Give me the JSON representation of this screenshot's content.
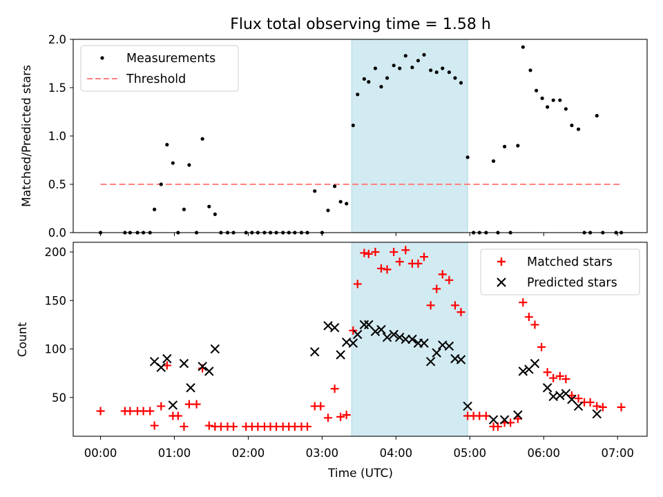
{
  "chart_data": [
    {
      "type": "scatter",
      "title": "Flux total observing time = 1.58 h",
      "ylabel": "Matched/Predicted stars",
      "ylim": [
        0,
        2.0
      ],
      "xlim": [
        -0.37,
        7.4
      ],
      "yticks": [
        "0.0",
        "0.5",
        "1.0",
        "1.5",
        "2.0"
      ],
      "shaded_span": [
        3.4,
        4.97
      ],
      "shade_color": "#add8e6",
      "legend": {
        "placement": "upper-left",
        "entries": [
          "Measurements",
          "Threshold"
        ]
      },
      "series": [
        {
          "name": "Measurements",
          "marker": "dot",
          "color": "#000000",
          "points": [
            [
              0.0,
              0
            ],
            [
              0.33,
              0
            ],
            [
              0.4,
              0
            ],
            [
              0.5,
              0
            ],
            [
              0.58,
              0
            ],
            [
              0.67,
              0
            ],
            [
              0.73,
              0.24
            ],
            [
              0.82,
              0.5
            ],
            [
              0.9,
              0.91
            ],
            [
              0.98,
              0.72
            ],
            [
              1.05,
              0
            ],
            [
              1.13,
              0.24
            ],
            [
              1.2,
              0.7
            ],
            [
              1.3,
              0
            ],
            [
              1.38,
              0.97
            ],
            [
              1.47,
              0.27
            ],
            [
              1.55,
              0.19
            ],
            [
              1.63,
              0
            ],
            [
              1.72,
              0
            ],
            [
              1.8,
              0
            ],
            [
              1.97,
              0
            ],
            [
              2.05,
              0
            ],
            [
              2.13,
              0
            ],
            [
              2.22,
              0
            ],
            [
              2.3,
              0
            ],
            [
              2.38,
              0
            ],
            [
              2.47,
              0
            ],
            [
              2.55,
              0
            ],
            [
              2.63,
              0
            ],
            [
              2.72,
              0
            ],
            [
              2.8,
              0
            ],
            [
              2.9,
              0.43
            ],
            [
              3.0,
              0
            ],
            [
              3.08,
              0.23
            ],
            [
              3.17,
              0.48
            ],
            [
              3.25,
              0.32
            ],
            [
              3.33,
              0.3
            ],
            [
              3.42,
              1.11
            ],
            [
              3.48,
              1.43
            ],
            [
              3.57,
              1.59
            ],
            [
              3.63,
              1.56
            ],
            [
              3.72,
              1.7
            ],
            [
              3.8,
              1.51
            ],
            [
              3.88,
              1.6
            ],
            [
              3.97,
              1.73
            ],
            [
              4.05,
              1.7
            ],
            [
              4.13,
              1.83
            ],
            [
              4.22,
              1.71
            ],
            [
              4.3,
              1.78
            ],
            [
              4.38,
              1.84
            ],
            [
              4.47,
              1.68
            ],
            [
              4.55,
              1.66
            ],
            [
              4.63,
              1.7
            ],
            [
              4.72,
              1.66
            ],
            [
              4.8,
              1.6
            ],
            [
              4.88,
              1.55
            ],
            [
              4.97,
              0.78
            ],
            [
              5.05,
              0
            ],
            [
              5.13,
              0
            ],
            [
              5.22,
              0
            ],
            [
              5.32,
              0.74
            ],
            [
              5.38,
              0
            ],
            [
              5.47,
              0.89
            ],
            [
              5.55,
              0
            ],
            [
              5.65,
              0.9
            ],
            [
              5.72,
              1.92
            ],
            [
              5.82,
              1.68
            ],
            [
              5.9,
              1.47
            ],
            [
              5.98,
              1.39
            ],
            [
              6.05,
              1.3
            ],
            [
              6.13,
              1.37
            ],
            [
              6.22,
              1.37
            ],
            [
              6.3,
              1.28
            ],
            [
              6.38,
              1.11
            ],
            [
              6.47,
              1.07
            ],
            [
              6.55,
              0
            ],
            [
              6.63,
              0
            ],
            [
              6.72,
              1.21
            ],
            [
              6.8,
              0
            ],
            [
              6.98,
              0
            ],
            [
              7.05,
              0
            ]
          ]
        },
        {
          "name": "Threshold",
          "marker": "dashed-line",
          "color": "#ff7f7f",
          "points": [
            [
              0.0,
              0.5
            ],
            [
              7.07,
              0.5
            ]
          ]
        }
      ]
    },
    {
      "type": "scatter",
      "xlabel": "Time (UTC)",
      "ylabel": "Count",
      "ylim": [
        10,
        210
      ],
      "xlim": [
        -0.37,
        7.4
      ],
      "yticks": [
        "50",
        "100",
        "150",
        "200"
      ],
      "xtick_values": [
        0,
        1,
        2,
        3,
        4,
        5,
        6,
        7
      ],
      "xticks": [
        "00:00",
        "01:00",
        "02:00",
        "03:00",
        "04:00",
        "05:00",
        "06:00",
        "07:00"
      ],
      "shaded_span": [
        3.4,
        4.97
      ],
      "shade_color": "#add8e6",
      "legend": {
        "placement": "upper-right",
        "entries": [
          "Matched stars",
          "Predicted stars"
        ]
      },
      "series": [
        {
          "name": "Matched stars",
          "marker": "plus",
          "color": "#ff0000",
          "points": [
            [
              0.0,
              36
            ],
            [
              0.33,
              36
            ],
            [
              0.4,
              36
            ],
            [
              0.5,
              36
            ],
            [
              0.58,
              36
            ],
            [
              0.67,
              36
            ],
            [
              0.73,
              21
            ],
            [
              0.82,
              41
            ],
            [
              0.9,
              83
            ],
            [
              0.98,
              31
            ],
            [
              1.05,
              31
            ],
            [
              1.13,
              20
            ],
            [
              1.2,
              43
            ],
            [
              1.3,
              43
            ],
            [
              1.38,
              80
            ],
            [
              1.47,
              21
            ],
            [
              1.55,
              20
            ],
            [
              1.63,
              20
            ],
            [
              1.72,
              20
            ],
            [
              1.8,
              20
            ],
            [
              1.97,
              20
            ],
            [
              2.05,
              20
            ],
            [
              2.13,
              20
            ],
            [
              2.22,
              20
            ],
            [
              2.3,
              20
            ],
            [
              2.38,
              20
            ],
            [
              2.47,
              20
            ],
            [
              2.55,
              20
            ],
            [
              2.63,
              20
            ],
            [
              2.72,
              20
            ],
            [
              2.8,
              20
            ],
            [
              2.9,
              41
            ],
            [
              2.98,
              41
            ],
            [
              3.08,
              29
            ],
            [
              3.17,
              59
            ],
            [
              3.25,
              30
            ],
            [
              3.33,
              32
            ],
            [
              3.42,
              119
            ],
            [
              3.48,
              167
            ],
            [
              3.57,
              199
            ],
            [
              3.63,
              198
            ],
            [
              3.72,
              200
            ],
            [
              3.8,
              183
            ],
            [
              3.88,
              182
            ],
            [
              3.97,
              200
            ],
            [
              4.05,
              190
            ],
            [
              4.13,
              202
            ],
            [
              4.22,
              188
            ],
            [
              4.3,
              188
            ],
            [
              4.38,
              195
            ],
            [
              4.47,
              145
            ],
            [
              4.55,
              162
            ],
            [
              4.63,
              177
            ],
            [
              4.72,
              171
            ],
            [
              4.8,
              145
            ],
            [
              4.88,
              138
            ],
            [
              4.97,
              31
            ],
            [
              5.05,
              31
            ],
            [
              5.13,
              31
            ],
            [
              5.22,
              31
            ],
            [
              5.32,
              20
            ],
            [
              5.38,
              20
            ],
            [
              5.47,
              24
            ],
            [
              5.55,
              24
            ],
            [
              5.65,
              28
            ],
            [
              5.72,
              148
            ],
            [
              5.8,
              133
            ],
            [
              5.88,
              125
            ],
            [
              5.97,
              102
            ],
            [
              6.05,
              76
            ],
            [
              6.13,
              70
            ],
            [
              6.22,
              72
            ],
            [
              6.3,
              69
            ],
            [
              6.38,
              52
            ],
            [
              6.47,
              49
            ],
            [
              6.55,
              45
            ],
            [
              6.63,
              45
            ],
            [
              6.72,
              41
            ],
            [
              6.8,
              40
            ],
            [
              7.05,
              40
            ]
          ]
        },
        {
          "name": "Predicted stars",
          "marker": "x",
          "color": "#000000",
          "points": [
            [
              0.73,
              87
            ],
            [
              0.82,
              81
            ],
            [
              0.9,
              90
            ],
            [
              0.98,
              42
            ],
            [
              1.13,
              85
            ],
            [
              1.22,
              60
            ],
            [
              1.38,
              82
            ],
            [
              1.47,
              77
            ],
            [
              1.55,
              100
            ],
            [
              2.9,
              97
            ],
            [
              3.08,
              124
            ],
            [
              3.17,
              122
            ],
            [
              3.25,
              94
            ],
            [
              3.33,
              107
            ],
            [
              3.42,
              106
            ],
            [
              3.48,
              115
            ],
            [
              3.57,
              125
            ],
            [
              3.63,
              125
            ],
            [
              3.72,
              118
            ],
            [
              3.8,
              120
            ],
            [
              3.88,
              112
            ],
            [
              3.97,
              115
            ],
            [
              4.05,
              112
            ],
            [
              4.13,
              110
            ],
            [
              4.22,
              110
            ],
            [
              4.3,
              106
            ],
            [
              4.38,
              106
            ],
            [
              4.47,
              87
            ],
            [
              4.55,
              96
            ],
            [
              4.63,
              104
            ],
            [
              4.72,
              103
            ],
            [
              4.8,
              90
            ],
            [
              4.88,
              89
            ],
            [
              4.97,
              41
            ],
            [
              5.32,
              27
            ],
            [
              5.47,
              27
            ],
            [
              5.65,
              32
            ],
            [
              5.72,
              77
            ],
            [
              5.8,
              79
            ],
            [
              5.88,
              85
            ],
            [
              6.05,
              60
            ],
            [
              6.13,
              51
            ],
            [
              6.22,
              52
            ],
            [
              6.3,
              54
            ],
            [
              6.38,
              48
            ],
            [
              6.47,
              41
            ],
            [
              6.72,
              33
            ]
          ]
        }
      ]
    }
  ]
}
